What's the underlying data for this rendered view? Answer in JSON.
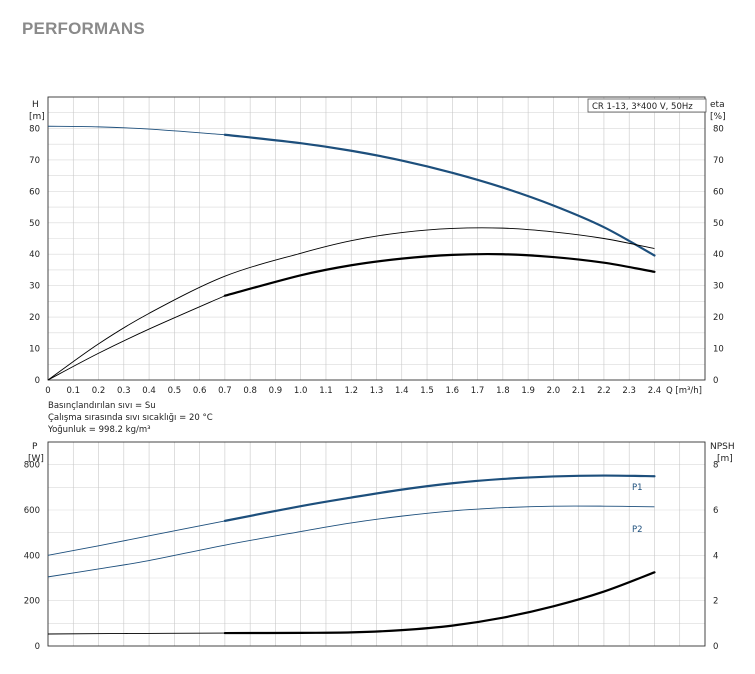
{
  "page": {
    "title": "PERFORMANS"
  },
  "chart_data": [
    {
      "type": "line",
      "y_left_label": "H",
      "y_left_unit": "[m]",
      "y_right_label": "eta",
      "y_right_unit": "[%]",
      "x_label": "Q [m³/h]",
      "x_ticks": [
        "0",
        "0.1",
        "0.2",
        "0.3",
        "0.4",
        "0.5",
        "0.6",
        "0.7",
        "0.8",
        "0.9",
        "1.0",
        "1.1",
        "1.2",
        "1.3",
        "1.4",
        "1.5",
        "1.6",
        "1.7",
        "1.8",
        "1.9",
        "2.0",
        "2.1",
        "2.2",
        "2.3",
        "2.4"
      ],
      "y_ticks": [
        "0",
        "10",
        "20",
        "30",
        "40",
        "50",
        "60",
        "70",
        "80"
      ],
      "xlim": [
        0,
        2.6
      ],
      "ylim": [
        0,
        90
      ],
      "grid": true,
      "legend_box": "CR 1-13, 3*400 V, 50Hz",
      "notes": [
        "Basınçlandırılan sıvı = Su",
        "Çalışma sırasında sıvı sıcaklığı = 20 °C",
        "Yoğunluk = 998.2 kg/m³"
      ],
      "series": [
        {
          "key": "H",
          "color": "#1d4f7c",
          "x": [
            0,
            0.2,
            0.4,
            0.7,
            1.0,
            1.2,
            1.4,
            1.6,
            1.8,
            2.0,
            2.2,
            2.4
          ],
          "y": [
            80.7,
            80.5,
            79.8,
            78.0,
            75.3,
            72.9,
            69.8,
            65.9,
            61.2,
            55.5,
            48.6,
            39.6
          ],
          "bold_from": 0.7
        },
        {
          "key": "eta_total",
          "color": "#000000",
          "x": [
            0,
            0.2,
            0.4,
            0.7,
            1.0,
            1.2,
            1.4,
            1.6,
            1.8,
            2.0,
            2.2,
            2.4
          ],
          "y": [
            0,
            8.5,
            16.2,
            26.8,
            33.3,
            36.5,
            38.6,
            39.8,
            40.0,
            39.1,
            37.3,
            34.4
          ],
          "bold_from": 0.7
        },
        {
          "key": "eta_hydraulic",
          "color": "#000000",
          "x": [
            0,
            0.2,
            0.4,
            0.7,
            1.0,
            1.2,
            1.4,
            1.6,
            1.8,
            2.0,
            2.2,
            2.4
          ],
          "y": [
            0,
            11.5,
            21.2,
            33.0,
            40.3,
            44.3,
            46.9,
            48.2,
            48.3,
            47.1,
            45.0,
            41.8
          ],
          "bold_from": null
        }
      ]
    },
    {
      "type": "line",
      "y_left_label": "P",
      "y_left_unit": "[W]",
      "y_right_label": "NPSH",
      "y_right_unit": "[m]",
      "y_ticks": [
        "0",
        "200",
        "400",
        "600",
        "800"
      ],
      "y_right_ticks": [
        "0",
        "2",
        "4",
        "6",
        "8"
      ],
      "xlim": [
        0,
        2.6
      ],
      "ylim": [
        0,
        900
      ],
      "y_right_lim": [
        0,
        9
      ],
      "grid": true,
      "series": [
        {
          "key": "P1",
          "name": "P1",
          "color": "#1d4f7c",
          "x": [
            0,
            0.2,
            0.4,
            0.7,
            1.0,
            1.2,
            1.4,
            1.6,
            1.8,
            2.0,
            2.2,
            2.4
          ],
          "y": [
            400,
            442,
            486,
            552,
            617,
            655,
            690,
            718,
            737,
            748,
            752,
            749
          ],
          "bold_from": 0.7
        },
        {
          "key": "P2",
          "name": "P2",
          "color": "#1d4f7c",
          "x": [
            0,
            0.2,
            0.4,
            0.7,
            1.0,
            1.2,
            1.4,
            1.6,
            1.8,
            2.0,
            2.2,
            2.4
          ],
          "y": [
            305,
            340,
            377,
            445,
            505,
            543,
            573,
            596,
            610,
            617,
            617,
            614
          ],
          "bold_from": null
        },
        {
          "key": "NPSH",
          "color": "#000000",
          "axis": "right",
          "x": [
            0,
            0.3,
            0.7,
            1.0,
            1.2,
            1.4,
            1.6,
            1.8,
            2.0,
            2.2,
            2.4
          ],
          "y": [
            0.53,
            0.55,
            0.57,
            0.58,
            0.6,
            0.7,
            0.9,
            1.25,
            1.75,
            2.4,
            3.25
          ],
          "bold_from": 0.7
        }
      ]
    }
  ]
}
